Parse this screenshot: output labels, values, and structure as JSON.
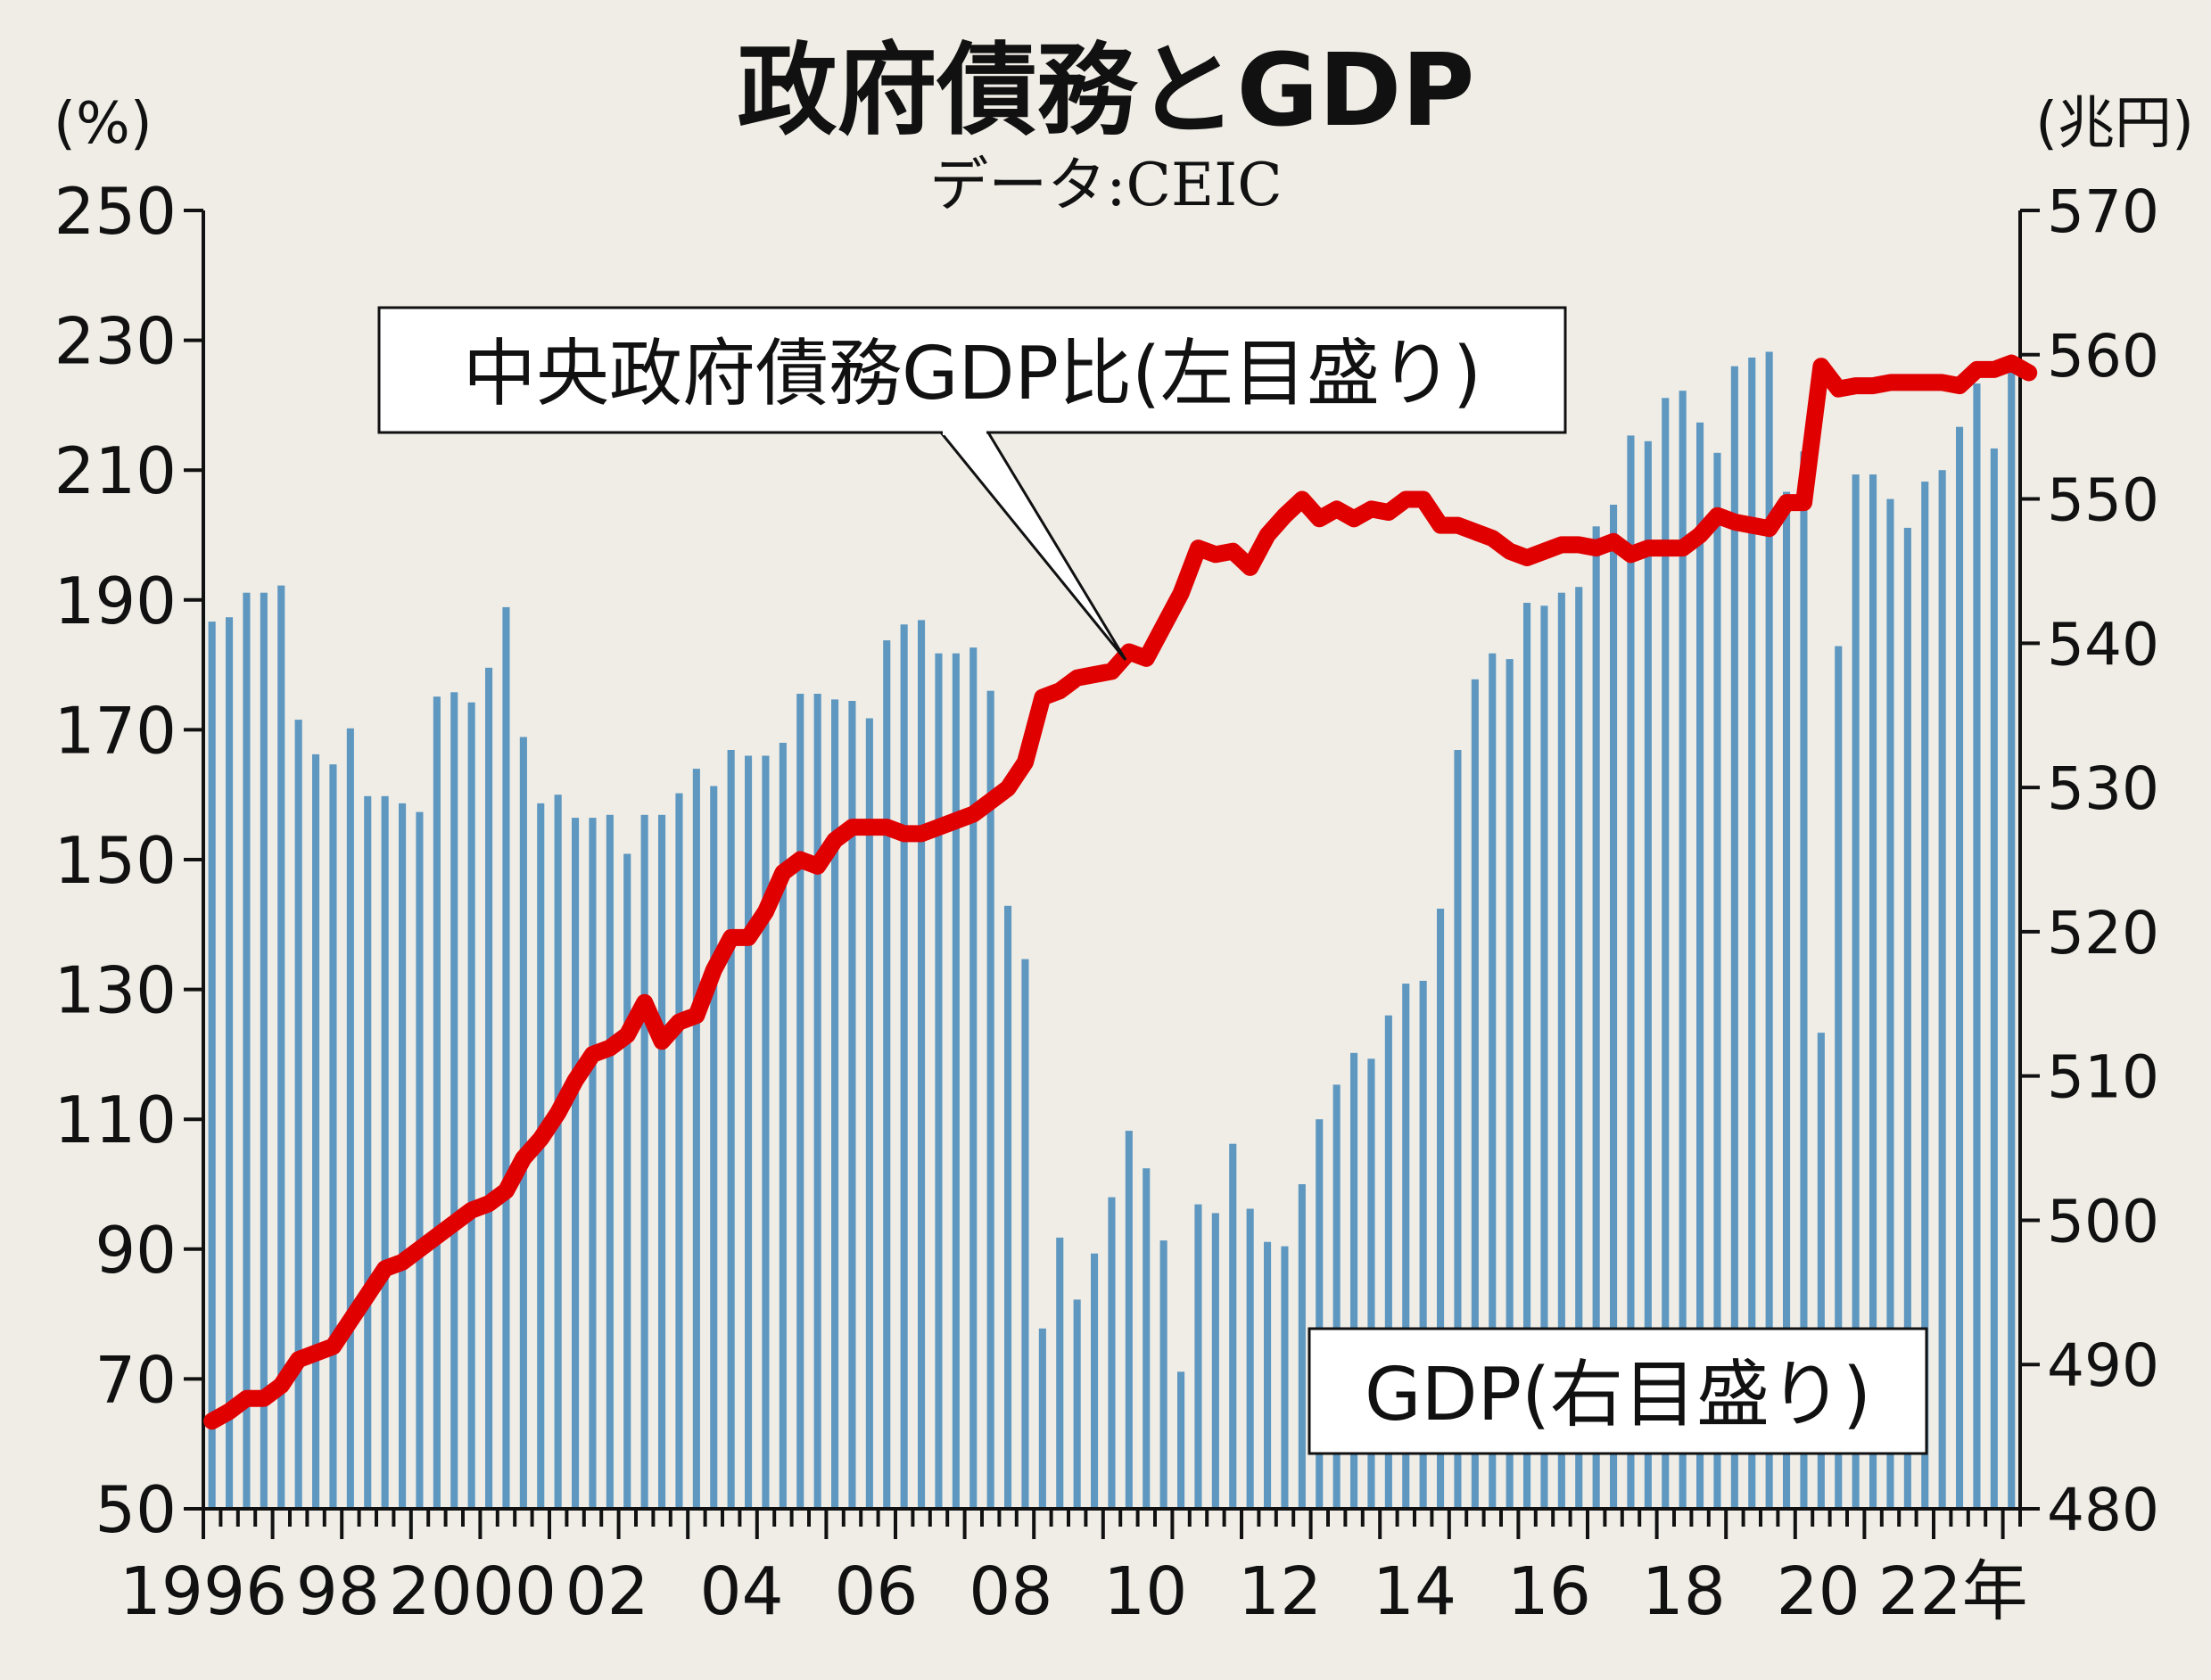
{
  "chart_data": {
    "type": "bar+line",
    "title": "政府債務とGDP",
    "subtitle": "データ:CEIC",
    "left_axis": {
      "unit": "(%)",
      "ylim": [
        50,
        250
      ],
      "ticks": [
        "50",
        "70",
        "90",
        "110",
        "130",
        "150",
        "170",
        "190",
        "210",
        "230",
        "250"
      ]
    },
    "right_axis": {
      "unit": "(兆円)",
      "ylim": [
        480,
        570
      ],
      "ticks": [
        "480",
        "490",
        "500",
        "510",
        "520",
        "530",
        "540",
        "550",
        "560",
        "570"
      ]
    },
    "x_start": 1996,
    "x_end": 2023,
    "x_labels": [
      {
        "year": 1996,
        "label": "1996"
      },
      {
        "year": 1998,
        "label": "98"
      },
      {
        "year": 2000,
        "label": "2000"
      },
      {
        "year": 2002,
        "label": "02"
      },
      {
        "year": 2004,
        "label": "04"
      },
      {
        "year": 2006,
        "label": "06"
      },
      {
        "year": 2008,
        "label": "08"
      },
      {
        "year": 2010,
        "label": "10"
      },
      {
        "year": 2012,
        "label": "12"
      },
      {
        "year": 2014,
        "label": "14"
      },
      {
        "year": 2016,
        "label": "16"
      },
      {
        "year": 2018,
        "label": "18"
      },
      {
        "year": 2020,
        "label": "20"
      },
      {
        "year": 2022,
        "label": "22年"
      }
    ],
    "series": [
      {
        "name": "GDP(右目盛り)",
        "type": "bar",
        "axis": "right",
        "color": "#5e97c0",
        "values": [
          541.5,
          541.8,
          543.5,
          543.5,
          544,
          534.7,
          532.3,
          531.6,
          534.1,
          529.4,
          529.4,
          528.9,
          528.3,
          536.3,
          536.6,
          535.9,
          538.3,
          542.5,
          533.5,
          528.9,
          529.5,
          527.9,
          527.9,
          528.1,
          525.4,
          528.1,
          528.1,
          529.6,
          531.3,
          530.1,
          532.6,
          532.2,
          532.2,
          533.1,
          536.5,
          536.5,
          536.1,
          536,
          534.8,
          540.2,
          541.3,
          541.6,
          539.3,
          539.3,
          539.7,
          536.7,
          521.8,
          518.1,
          492.5,
          498.8,
          494.5,
          497.7,
          501.6,
          506.2,
          503.6,
          498.6,
          489.5,
          501.1,
          500.5,
          505.3,
          500.8,
          498.5,
          498.2,
          502.5,
          507,
          509.4,
          511.6,
          511.2,
          514.2,
          516.4,
          516.6,
          521.6,
          532.6,
          537.5,
          539.3,
          538.9,
          542.8,
          542.6,
          543.5,
          543.9,
          548.1,
          549.6,
          554.4,
          554,
          557,
          557.5,
          555.3,
          553.2,
          559.2,
          559.8,
          560.2,
          550.5,
          553.3,
          513,
          539.8,
          551.7,
          551.7,
          550,
          548,
          551.2,
          552,
          555,
          558,
          553.5,
          559.2
        ]
      },
      {
        "name": "中央政府債務GDP比(左目盛り)",
        "type": "line",
        "axis": "left",
        "color": "#e00000",
        "values": [
          63.5,
          65,
          67,
          67,
          69,
          73,
          74,
          75,
          79,
          83,
          87,
          88,
          90,
          92,
          94,
          96,
          97,
          99,
          104,
          107,
          111,
          116,
          120,
          121,
          123,
          128,
          122,
          125,
          126,
          133,
          138,
          138,
          142,
          148,
          150,
          149,
          153,
          155,
          155,
          155,
          154,
          154,
          155,
          156,
          157,
          159,
          161,
          165,
          175,
          176,
          178,
          178.5,
          179,
          182,
          181,
          186,
          191,
          198,
          197,
          197.5,
          195,
          200,
          203,
          205.5,
          202.5,
          204,
          202.5,
          204,
          203.5,
          205.5,
          205.5,
          201.5,
          201.5,
          200.5,
          199.5,
          197.5,
          196.5,
          197.5,
          198.5,
          198.5,
          198,
          199,
          197,
          198,
          198,
          198,
          200,
          203,
          202,
          201.5,
          201,
          205,
          205,
          226,
          222.5,
          223,
          223,
          223.5,
          223.5,
          223.5,
          223.5,
          223,
          225.5,
          225.5,
          226.5,
          225
        ]
      }
    ],
    "annotations": [
      {
        "name": "line-callout",
        "text": "中央政府債務GDP比(左目盛り)",
        "target": "line"
      },
      {
        "name": "bar-legend",
        "text": "GDP(右目盛り)",
        "target": "bars"
      }
    ]
  }
}
